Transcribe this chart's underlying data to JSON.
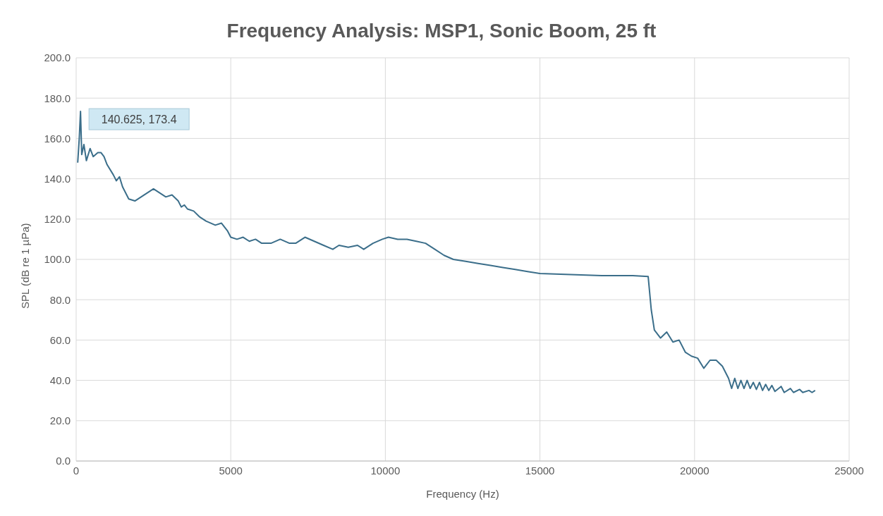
{
  "chart_data": {
    "type": "line",
    "title": "Frequency Analysis: MSP1, Sonic Boom, 25 ft",
    "xlabel": "Frequency (Hz)",
    "ylabel": "SPL (dB re 1 µPa)",
    "x": [
      50,
      100,
      140.625,
      180,
      250,
      330,
      450,
      550,
      700,
      800,
      900,
      1000,
      1200,
      1300,
      1400,
      1500,
      1700,
      1900,
      2100,
      2300,
      2500,
      2700,
      2900,
      3100,
      3300,
      3400,
      3500,
      3600,
      3800,
      4000,
      4200,
      4500,
      4700,
      4900,
      5000,
      5200,
      5400,
      5600,
      5800,
      6000,
      6300,
      6600,
      6900,
      7100,
      7400,
      7700,
      8000,
      8300,
      8500,
      8800,
      9100,
      9300,
      9600,
      9900,
      10100,
      10400,
      10700,
      11000,
      11300,
      11600,
      11900,
      12200,
      12600,
      13000,
      13400,
      13800,
      14200,
      14600,
      15000,
      16000,
      17000,
      18000,
      18500,
      18600,
      18700,
      18900,
      19100,
      19300,
      19500,
      19700,
      19900,
      20100,
      20300,
      20500,
      20700,
      20900,
      21100,
      21200,
      21300,
      21400,
      21500,
      21600,
      21700,
      21800,
      21900,
      22000,
      22100,
      22200,
      22300,
      22400,
      22500,
      22600,
      22800,
      22900,
      23100,
      23200,
      23400,
      23500,
      23700,
      23800,
      23900
    ],
    "series": [
      {
        "color": "#3b6e8a",
        "values": [
          148,
          160,
          173.4,
          152,
          157,
          149,
          155,
          151,
          153,
          153,
          151,
          147,
          142,
          139,
          141,
          136,
          130,
          129,
          131,
          133,
          135,
          133,
          131,
          132,
          129,
          126,
          127,
          125,
          124,
          121,
          119,
          117,
          118,
          114,
          111,
          110,
          111,
          109,
          110,
          108,
          108,
          110,
          108,
          108,
          111,
          109,
          107,
          105,
          107,
          106,
          107,
          105,
          108,
          110,
          111,
          110,
          110,
          109,
          108,
          105,
          102,
          100,
          99,
          98,
          97,
          96,
          95,
          94,
          93,
          92.5,
          92,
          92,
          91.5,
          75,
          65,
          61,
          64,
          59,
          60,
          54,
          52,
          51,
          46,
          50,
          50,
          47,
          41,
          36,
          41,
          36,
          40,
          36,
          40,
          36,
          39,
          35.5,
          39,
          35,
          38,
          35,
          37.5,
          34.5,
          37,
          34,
          36,
          34,
          35.5,
          34,
          35,
          34,
          35
        ]
      }
    ],
    "annotations": [
      {
        "text": "140.625, 173.4",
        "x": 140.625,
        "y": 173.4
      }
    ],
    "xlim": [
      0,
      25000
    ],
    "xticks": [
      0,
      5000,
      10000,
      15000,
      20000,
      25000
    ],
    "ylim": [
      0,
      200
    ],
    "yticks": [
      {
        "value": 0,
        "label": "0.0"
      },
      {
        "value": 20,
        "label": "20.0"
      },
      {
        "value": 40,
        "label": "40.0"
      },
      {
        "value": 60,
        "label": "60.0"
      },
      {
        "value": 80,
        "label": "80.0"
      },
      {
        "value": 100,
        "label": "100.0"
      },
      {
        "value": 120,
        "label": "120.0"
      },
      {
        "value": 140,
        "label": "140.0"
      },
      {
        "value": 160,
        "label": "160.0"
      },
      {
        "value": 180,
        "label": "180.0"
      },
      {
        "value": 200,
        "label": "200.0"
      }
    ],
    "grid": true,
    "legend": false,
    "marker": "none",
    "line_style": "solid"
  }
}
